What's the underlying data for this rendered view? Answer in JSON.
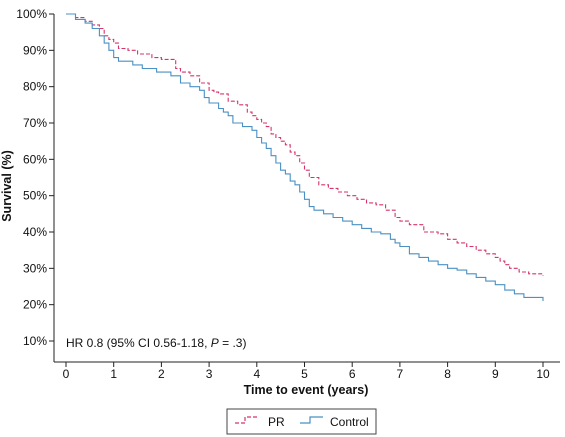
{
  "chart_data": {
    "type": "line",
    "step": true,
    "xlabel": "Time to event (years)",
    "ylabel": "Survival (%)",
    "xlim": [
      0,
      10
    ],
    "ylim": [
      10,
      100
    ],
    "x_ticks": [
      0,
      1,
      2,
      3,
      4,
      5,
      6,
      7,
      8,
      9,
      10
    ],
    "y_ticks": [
      10,
      20,
      30,
      40,
      50,
      60,
      70,
      80,
      90,
      100
    ],
    "y_tick_labels": [
      "10%",
      "20%",
      "30%",
      "40%",
      "50%",
      "60%",
      "70%",
      "80%",
      "90%",
      "100%"
    ],
    "grid": false,
    "legend_position": "bottom-center",
    "annotation": {
      "before": "HR 0.8 (95% CI 0.56-1.18, ",
      "italic": "P",
      "after": " = .3)"
    },
    "series": [
      {
        "name": "PR",
        "color": "#d6336c",
        "dashed": true,
        "x": [
          0,
          0.2,
          0.4,
          0.55,
          0.7,
          0.8,
          0.9,
          1.0,
          1.1,
          1.3,
          1.5,
          1.8,
          2.0,
          2.3,
          2.4,
          2.6,
          2.8,
          3.0,
          3.1,
          3.2,
          3.4,
          3.6,
          3.8,
          3.9,
          4.0,
          4.1,
          4.2,
          4.3,
          4.4,
          4.5,
          4.6,
          4.7,
          4.8,
          4.9,
          5.0,
          5.1,
          5.3,
          5.5,
          5.7,
          5.9,
          6.1,
          6.3,
          6.5,
          6.7,
          6.9,
          7.0,
          7.2,
          7.5,
          7.8,
          8.0,
          8.2,
          8.4,
          8.6,
          8.8,
          9.0,
          9.1,
          9.2,
          9.3,
          9.5,
          9.7,
          10.0
        ],
        "y": [
          100,
          99,
          98,
          97,
          96,
          94,
          93,
          92,
          90.5,
          90,
          89,
          88,
          87.5,
          85,
          84,
          83,
          81,
          79,
          78.5,
          78,
          76,
          75,
          73,
          72,
          71,
          70,
          69,
          67,
          66,
          65,
          64,
          62,
          61,
          59,
          57,
          55,
          53,
          52,
          51,
          50,
          49,
          48,
          47.5,
          46,
          44,
          43,
          42,
          40,
          39.5,
          38,
          37,
          36,
          35,
          34,
          33,
          32,
          31,
          30,
          29,
          28.5,
          28
        ]
      },
      {
        "name": "Control",
        "color": "#4a90c4",
        "dashed": false,
        "x": [
          0,
          0.2,
          0.4,
          0.55,
          0.7,
          0.8,
          0.9,
          1.0,
          1.1,
          1.4,
          1.6,
          1.9,
          2.2,
          2.4,
          2.6,
          2.8,
          2.9,
          3.0,
          3.2,
          3.3,
          3.4,
          3.5,
          3.7,
          3.9,
          4.0,
          4.1,
          4.2,
          4.3,
          4.4,
          4.5,
          4.6,
          4.7,
          4.8,
          4.9,
          5.0,
          5.1,
          5.2,
          5.4,
          5.6,
          5.8,
          6.0,
          6.2,
          6.4,
          6.6,
          6.8,
          6.9,
          7.0,
          7.2,
          7.4,
          7.6,
          7.8,
          8.0,
          8.2,
          8.4,
          8.6,
          8.8,
          9.0,
          9.2,
          9.4,
          9.6,
          10.0
        ],
        "y": [
          100,
          98.5,
          97.5,
          96,
          94,
          92,
          90,
          88,
          87,
          86,
          85,
          84,
          83,
          81,
          80,
          79,
          77,
          75.5,
          74,
          73,
          72,
          70,
          69,
          68,
          66,
          64.5,
          63,
          61,
          59,
          57,
          56,
          54,
          53,
          51,
          49,
          47,
          46,
          45,
          44,
          43,
          42,
          41,
          40,
          39.5,
          38,
          37,
          36,
          34,
          33,
          32,
          31,
          30,
          29.5,
          28.5,
          27.5,
          26.5,
          25.5,
          24,
          23,
          22,
          21
        ]
      }
    ]
  }
}
